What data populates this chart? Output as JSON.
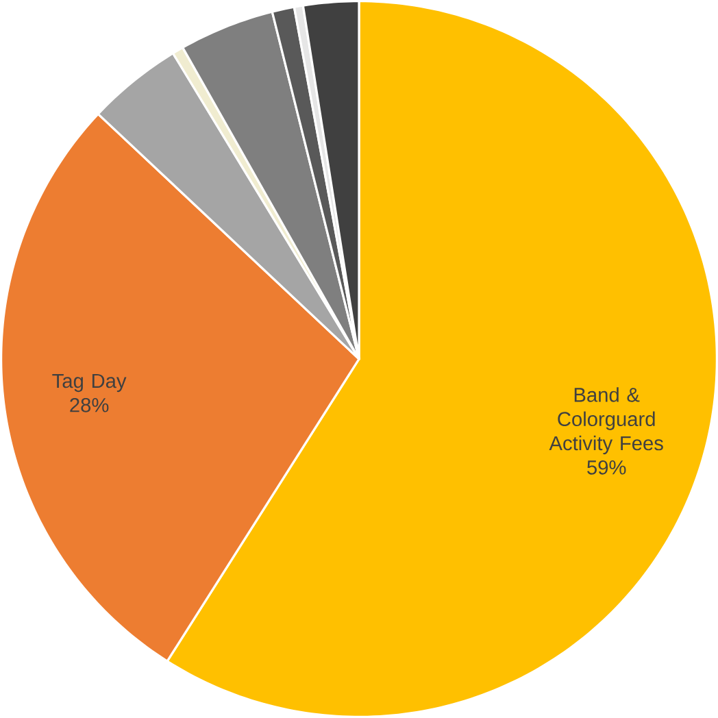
{
  "chart_data": {
    "type": "pie",
    "categories": [
      "Band & Colorguard Activity Fees",
      "Tag Day",
      null,
      null,
      null,
      null,
      null,
      null
    ],
    "values": [
      59,
      28,
      4.3,
      0.5,
      4.3,
      1,
      0.4,
      2.5
    ],
    "value_labels": [
      "59%",
      "28%",
      null,
      null,
      null,
      null,
      null,
      null
    ],
    "colors": [
      "#ffc000",
      "#ed7d31",
      "#a5a5a5",
      "#f0ecd0",
      "#7f7f7f",
      "#595959",
      "#e6e6e6",
      "#404040"
    ]
  }
}
